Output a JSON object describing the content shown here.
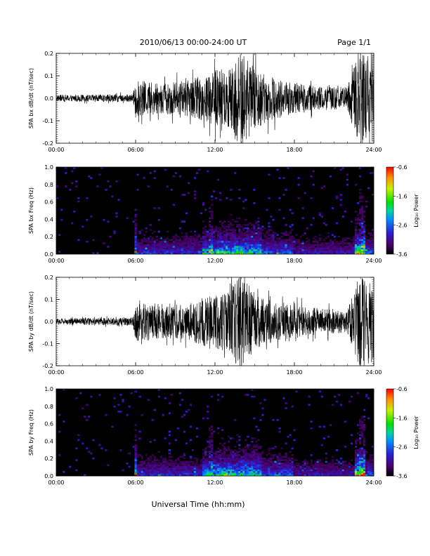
{
  "header": {
    "title": "2010/06/13  00:00-24:00 UT",
    "page": "Page 1/1"
  },
  "footer": {
    "xlabel": "Universal Time (hh:mm)"
  },
  "colorbar": {
    "label": "Log₁₀ Power",
    "ticks": [
      "-0.6",
      "-1.6",
      "-2.6",
      "-3.6"
    ],
    "range": [
      -3.6,
      -0.6
    ]
  },
  "colors": {
    "trace": "#000000",
    "background": "#000000"
  },
  "chart_data": [
    {
      "type": "line",
      "ylabel": "SPA bx dB/dt (nT/sec)",
      "ylim": [
        -0.2,
        0.2
      ],
      "yticks": [
        "0.2",
        "0.1",
        "0.0",
        "-0.1",
        "-0.2"
      ],
      "xlim_hours": [
        0,
        24
      ],
      "xticks": [
        "00:00",
        "06:00",
        "12:00",
        "18:00",
        "24:00"
      ],
      "envelope": {
        "x_hours": [
          0,
          2,
          5.8,
          6,
          8,
          10,
          11,
          12,
          13,
          13.6,
          14.2,
          15,
          16,
          18,
          20,
          22,
          22.8,
          23.4,
          24
        ],
        "amplitude": [
          0.015,
          0.015,
          0.018,
          0.08,
          0.07,
          0.08,
          0.1,
          0.13,
          0.14,
          0.2,
          0.2,
          0.14,
          0.1,
          0.07,
          0.05,
          0.05,
          0.2,
          0.2,
          0.2
        ]
      }
    },
    {
      "type": "heatmap",
      "ylabel": "SPA bx Freq (Hz)",
      "ylim": [
        0.0,
        1.0
      ],
      "yticks": [
        "1.0",
        "0.8",
        "0.6",
        "0.4",
        "0.2",
        "0.0"
      ],
      "xlim_hours": [
        0,
        24
      ],
      "xticks": [
        "00:00",
        "06:00",
        "12:00",
        "18:00",
        "24:00"
      ]
    },
    {
      "type": "line",
      "ylabel": "SPA by dB/dt (nT/sec)",
      "ylim": [
        -0.2,
        0.2
      ],
      "yticks": [
        "0.2",
        "0.1",
        "0.0",
        "-0.1",
        "-0.2"
      ],
      "xlim_hours": [
        0,
        24
      ],
      "xticks": [
        "00:00",
        "06:00",
        "12:00",
        "18:00",
        "24:00"
      ],
      "envelope": {
        "x_hours": [
          0,
          2,
          5.8,
          6,
          8,
          10,
          11,
          12,
          13,
          13.6,
          14.2,
          15,
          16,
          18,
          20,
          22,
          22.8,
          23.4,
          24
        ],
        "amplitude": [
          0.015,
          0.015,
          0.018,
          0.09,
          0.08,
          0.08,
          0.11,
          0.12,
          0.14,
          0.2,
          0.2,
          0.13,
          0.1,
          0.07,
          0.06,
          0.05,
          0.2,
          0.2,
          0.2
        ]
      }
    },
    {
      "type": "heatmap",
      "ylabel": "SPA by Freq (Hz)",
      "ylim": [
        0.0,
        1.0
      ],
      "yticks": [
        "1.0",
        "0.8",
        "0.6",
        "0.4",
        "0.2",
        "0.0"
      ],
      "xlim_hours": [
        0,
        24
      ],
      "xticks": [
        "00:00",
        "06:00",
        "12:00",
        "18:00",
        "24:00"
      ]
    }
  ]
}
